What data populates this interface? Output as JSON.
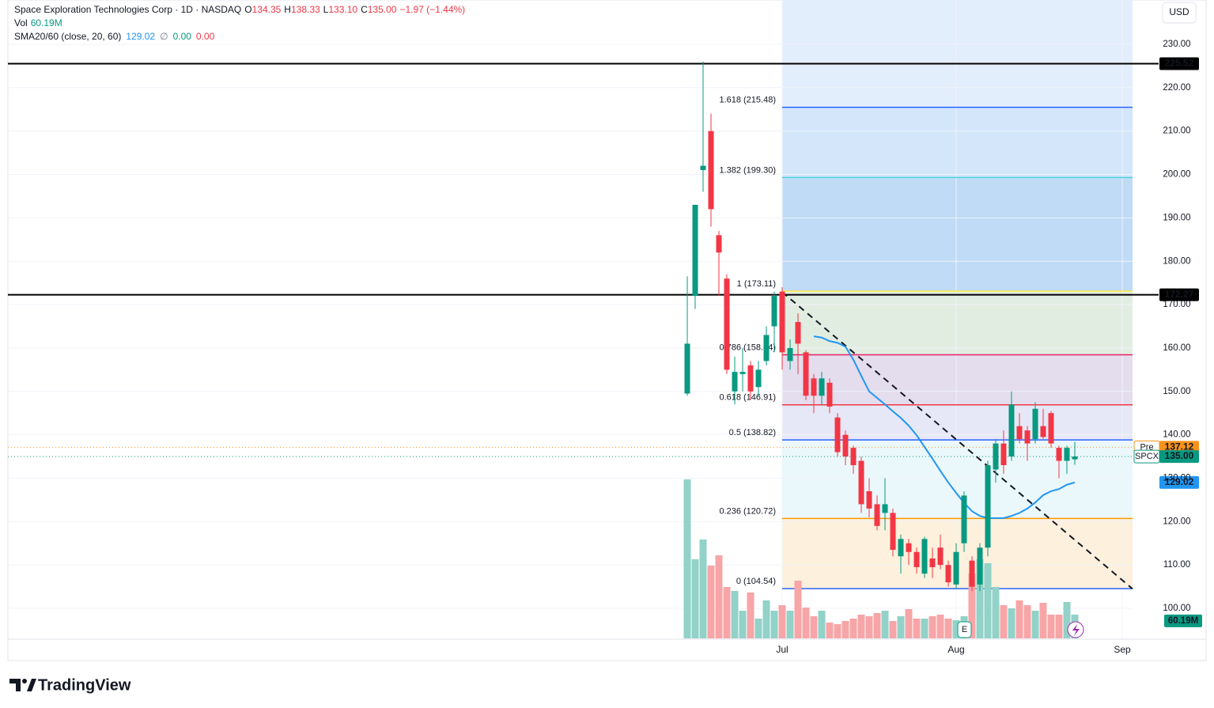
{
  "header": {
    "title": "Space Exploration Technologies Corp · 1D · NASDAQ",
    "ohlc": [
      {
        "key": "O",
        "value": "134.35"
      },
      {
        "key": "H",
        "value": "138.33"
      },
      {
        "key": "L",
        "value": "133.10"
      },
      {
        "key": "C",
        "value": "135.00"
      }
    ],
    "change": "−1.97 (−1.44%)",
    "sma_extra": [
      "∅",
      "0.00",
      "0.00"
    ],
    "currency": "USD",
    "earnings_marker": "E",
    "brand": "TradingView"
  },
  "chart_data": {
    "type": "candlestick",
    "open": [
      149.5,
      172,
      201,
      210,
      186,
      176,
      150,
      154,
      156,
      151,
      157,
      165,
      173,
      157,
      166,
      159,
      153,
      149,
      152,
      144,
      140,
      137,
      134,
      127,
      124,
      122,
      122,
      112,
      115,
      113,
      108,
      111.5,
      114,
      110,
      105.5,
      115,
      111,
      105.5,
      114,
      132,
      138,
      135,
      142,
      141,
      139,
      142,
      145,
      137,
      134,
      134.35
    ],
    "high": [
      176.5,
      193,
      226,
      214,
      187,
      177,
      158,
      160,
      157,
      157,
      165,
      173,
      174,
      162,
      168,
      159.5,
      154,
      154.5,
      153,
      145,
      141,
      137.5,
      135,
      130,
      126,
      130,
      123,
      117,
      116,
      114,
      116.5,
      114,
      117,
      111,
      115,
      127,
      112,
      115,
      134,
      139,
      141,
      150,
      145,
      142,
      147.5,
      146,
      145.5,
      137.5,
      137.5,
      138.33
    ],
    "low": [
      149,
      169,
      196,
      188,
      172,
      154,
      147,
      150,
      148,
      149,
      156,
      159,
      155,
      155,
      154,
      148,
      145,
      147,
      145,
      135,
      133,
      131,
      122,
      121,
      118,
      118,
      112,
      108,
      110,
      108,
      107,
      107,
      109,
      105,
      104.5,
      113,
      104,
      104,
      112,
      129,
      131,
      134,
      138,
      134,
      138,
      139,
      137,
      130,
      131,
      133.1
    ],
    "close": [
      161,
      193,
      202,
      192,
      182,
      155,
      154.5,
      154.5,
      150,
      155,
      163,
      172,
      159,
      160,
      161,
      149,
      149,
      153,
      146.5,
      136,
      135,
      133,
      124,
      123,
      119,
      124,
      113.5,
      116,
      113,
      109.5,
      116,
      109.5,
      110,
      106,
      113,
      126,
      105,
      114,
      133,
      138,
      133,
      147,
      139,
      138,
      146,
      139.5,
      138,
      134,
      137,
      135
    ],
    "up_color": "#089981",
    "down_color": "#f23645",
    "volume": {
      "name": "Vol",
      "values": [
        402,
        200,
        250,
        184,
        210,
        130,
        120,
        70,
        116,
        50,
        96,
        70,
        84,
        70,
        146,
        78,
        56,
        70,
        40,
        36,
        44,
        50,
        60,
        56,
        64,
        70,
        44,
        56,
        74,
        50,
        50,
        56,
        60,
        50,
        46,
        56,
        164,
        200,
        190,
        130,
        84,
        76,
        96,
        84,
        70,
        90,
        60,
        60,
        92,
        60.19
      ],
      "last_label": "60.19M",
      "ylim": [
        0,
        440
      ],
      "up_color": "#92d2c8",
      "down_color": "#f7a5a7"
    },
    "sma": {
      "name": "SMA20/60 (close, 20, 60)",
      "color": "#2196f3",
      "values": [
        null,
        null,
        null,
        null,
        null,
        null,
        null,
        null,
        null,
        null,
        null,
        null,
        null,
        null,
        null,
        null,
        162.7,
        162.4,
        161.6,
        161.2,
        160.3,
        157.3,
        153.6,
        150,
        148.5,
        147,
        145.4,
        143.9,
        142.1,
        139.9,
        137.2,
        134.5,
        131.7,
        129,
        126.6,
        124.3,
        122.4,
        121.3,
        120.8,
        120.8,
        120.8,
        121.3,
        122,
        123,
        124.4,
        126.1,
        127,
        127.5,
        128.5,
        129.02
      ]
    },
    "xlim": [
      -85.9,
      56.3
    ],
    "ylim": [
      92.9,
      240.2
    ],
    "xticks": [
      {
        "value": 12,
        "label": "Jul"
      },
      {
        "value": 34,
        "label": "Aug"
      },
      {
        "value": 55,
        "label": "Sep"
      }
    ],
    "yticks": [
      {
        "value": 100,
        "label": "100.00"
      },
      {
        "value": 110,
        "label": "110.00"
      },
      {
        "value": 120,
        "label": "120.00"
      },
      {
        "value": 130,
        "label": "130.00"
      },
      {
        "value": 140,
        "label": "140.00"
      },
      {
        "value": 150,
        "label": "150.00"
      },
      {
        "value": 160,
        "label": "160.00"
      },
      {
        "value": 170,
        "label": "170.00"
      },
      {
        "value": 180,
        "label": "180.00"
      },
      {
        "value": 190,
        "label": "190.00"
      },
      {
        "value": 200,
        "label": "200.00"
      },
      {
        "value": 210,
        "label": "210.00"
      },
      {
        "value": 220,
        "label": "220.00"
      },
      {
        "value": 230,
        "label": "230.00"
      }
    ],
    "grid": true,
    "fib": {
      "xrange": [
        12,
        56.3
      ],
      "levels": [
        {
          "ratio": 0,
          "price": 104.54,
          "label": "0 (104.54)",
          "color": "#2962ff",
          "zone": "#fdf0dc"
        },
        {
          "ratio": 0.236,
          "price": 120.72,
          "label": "0.236 (120.72)",
          "color": "#ff9800",
          "zone": "#eaf8fb"
        },
        {
          "ratio": 0.5,
          "price": 138.82,
          "label": "0.5 (138.82)",
          "color": "#2962ff",
          "zone": "#e6e8f7"
        },
        {
          "ratio": 0.618,
          "price": 146.91,
          "label": "0.618 (146.91)",
          "color": "#f23645",
          "zone": "#e3ddee"
        },
        {
          "ratio": 0.786,
          "price": 158.44,
          "label": "0.786 (158.44)",
          "color": "#e91e63",
          "zone": "#e1ede1"
        },
        {
          "ratio": 1,
          "price": 173.11,
          "label": "1 (173.11)",
          "color": "#ffeb3b",
          "zone": "#bfdbf6"
        },
        {
          "ratio": 1.382,
          "price": 199.3,
          "label": "1.382 (199.30)",
          "color": "#4dd0e1",
          "zone": "#d3e6fa"
        },
        {
          "ratio": 1.618,
          "price": 215.48,
          "label": "1.618 (215.48)",
          "color": "#2962ff",
          "zone": "#e3eefc"
        }
      ]
    },
    "hlines": [
      {
        "value": 225.52
      },
      {
        "value": 172.27
      }
    ],
    "price_labels": [
      {
        "name": "Pre",
        "value": 137.12,
        "color": "#f7931a"
      },
      {
        "name": "SPCX",
        "value": {
          "value": 135,
          "label": "135.00"
        },
        "color": "#089981"
      }
    ],
    "trendline": {
      "x": [
        12,
        56.3
      ],
      "y": [
        172.9,
        104.5
      ]
    }
  }
}
